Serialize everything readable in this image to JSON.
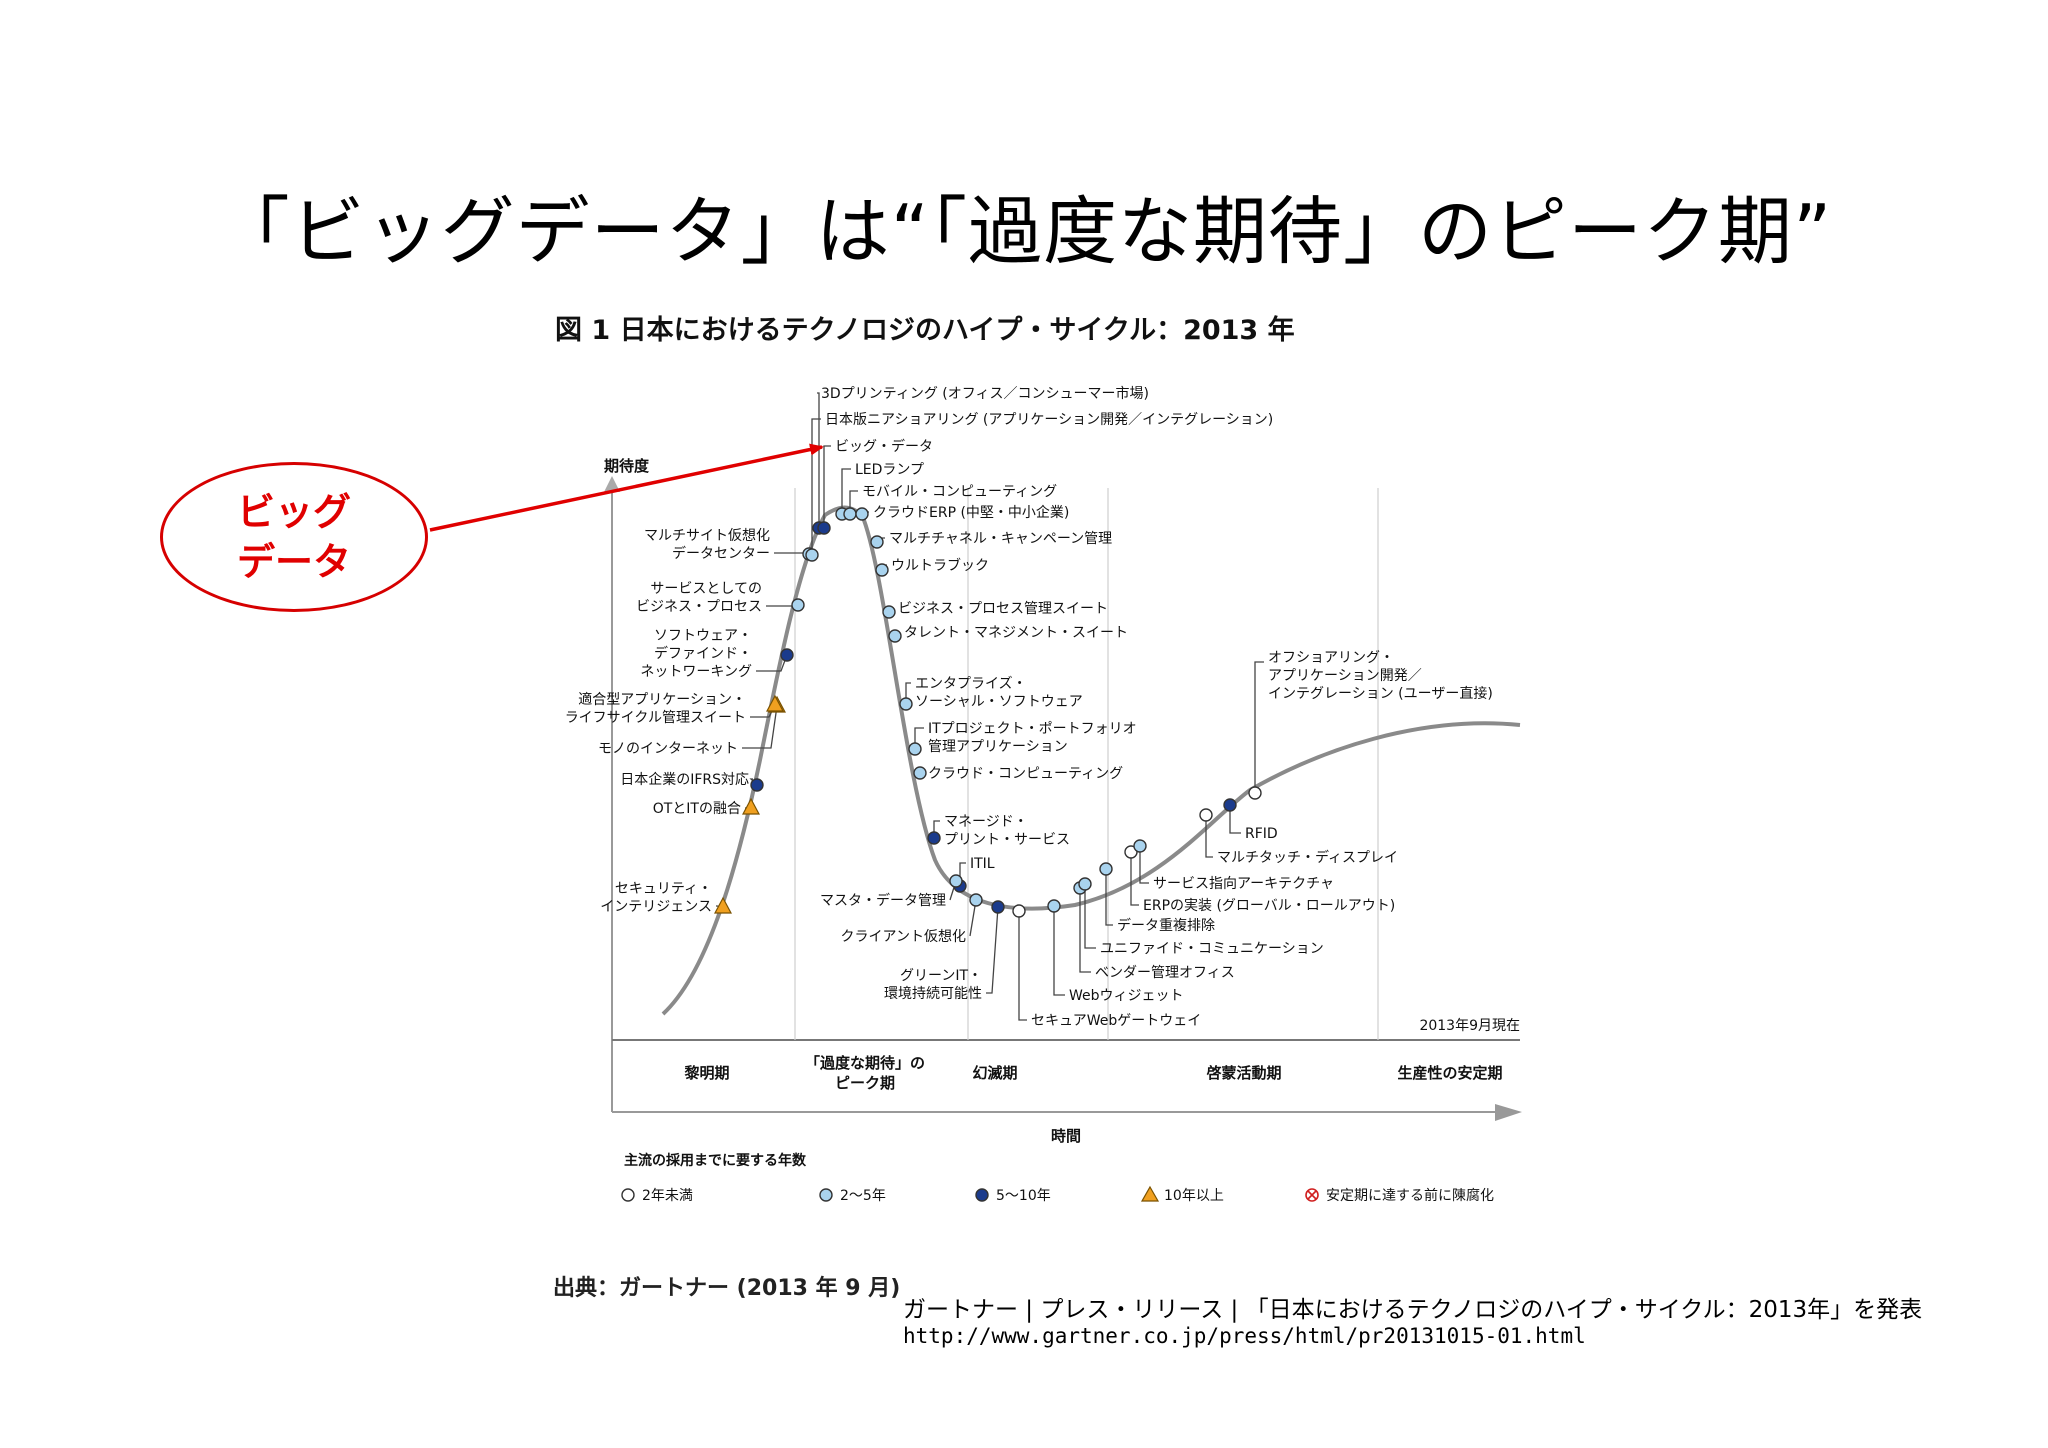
{
  "slide": {
    "title": "「ビッグデータ」は“「過度な期待」のピーク期”",
    "figure_caption": "図 1  日本におけるテクノロジのハイプ・サイクル：2013 年",
    "source_note": "出典：ガートナー (2013 年 9 月)",
    "reference_line1": "ガートナー | プレス・リリース | 「日本におけるテクノロジのハイプ・サイクル：2013年」を発表",
    "reference_line2": "http://www.gartner.co.jp/press/html/pr20131015-01.html",
    "callout": {
      "line1": "ビッグ",
      "line2": "データ",
      "color": "#e00000"
    }
  },
  "chart": {
    "y_axis_label": "期待度",
    "x_axis_label": "時間",
    "as_of": "2013年9月現在",
    "phases": [
      "黎明期",
      "「過度な期待」のピーク期",
      "幻滅期",
      "啓蒙活動期",
      "生産性の安定期"
    ],
    "legend_title": "主流の採用までに要する年数",
    "legend": [
      {
        "label": "2年未満",
        "marker": "white-circle"
      },
      {
        "label": "2～5年",
        "marker": "lightblue-circle"
      },
      {
        "label": "5～10年",
        "marker": "navy-circle"
      },
      {
        "label": "10年以上",
        "marker": "orange-triangle"
      },
      {
        "label": "安定期に達する前に陳腐化",
        "marker": "crossed-circle"
      }
    ],
    "colors": {
      "white": "#ffffff",
      "lightblue": "#a9d3ee",
      "navy": "#1b3b8c",
      "orange": "#f0a020",
      "curve": "#8a8a8a",
      "callout_red": "#e00000"
    },
    "technologies": [
      {
        "name": "セキュリティ・インテリジェンス",
        "label_lines": [
          "セキュリティ・",
          "インテリジェンス"
        ],
        "category": "10年以上"
      },
      {
        "name": "OTとITの融合",
        "label_lines": [
          "OTとITの融合"
        ],
        "category": "10年以上"
      },
      {
        "name": "日本企業のIFRS対応",
        "label_lines": [
          "日本企業のIFRS対応"
        ],
        "category": "5～10年"
      },
      {
        "name": "モノのインターネット",
        "label_lines": [
          "モノのインターネット"
        ],
        "category": "10年以上"
      },
      {
        "name": "適合型アプリケーション・ライフサイクル管理スイート",
        "label_lines": [
          "適合型アプリケーション・",
          "ライフサイクル管理スイート"
        ],
        "category": "10年以上"
      },
      {
        "name": "ソフトウェア・デファインド・ネットワーキング",
        "label_lines": [
          "ソフトウェア・",
          "デファインド・",
          "ネットワーキング"
        ],
        "category": "5～10年"
      },
      {
        "name": "サービスとしてのビジネス・プロセス",
        "label_lines": [
          "サービスとしての",
          "ビジネス・プロセス"
        ],
        "category": "2～5年"
      },
      {
        "name": "マルチサイト仮想化データセンター",
        "label_lines": [
          "マルチサイト仮想化",
          "データセンター"
        ],
        "category": "2～5年"
      },
      {
        "name": "3Dプリンティング (オフィス／コンシューマー市場)",
        "label_lines": [
          "3Dプリンティング (オフィス／コンシューマー市場)"
        ],
        "category": "5～10年"
      },
      {
        "name": "日本版ニアショアリング (アプリケーション開発／インテグレーション)",
        "label_lines": [
          "日本版ニアショアリング (アプリケーション開発／インテグレーション)"
        ],
        "category": "2～5年"
      },
      {
        "name": "ビッグ・データ",
        "label_lines": [
          "ビッグ・データ"
        ],
        "category": "5～10年"
      },
      {
        "name": "LEDランプ",
        "label_lines": [
          "LEDランプ"
        ],
        "category": "2～5年"
      },
      {
        "name": "モバイル・コンピューティング",
        "label_lines": [
          "モバイル・コンピューティング"
        ],
        "category": "2～5年"
      },
      {
        "name": "クラウドERP (中堅・中小企業)",
        "label_lines": [
          "クラウドERP (中堅・中小企業)"
        ],
        "category": "2～5年"
      },
      {
        "name": "マルチチャネル・キャンペーン管理",
        "label_lines": [
          "マルチチャネル・キャンペーン管理"
        ],
        "category": "2～5年"
      },
      {
        "name": "ウルトラブック",
        "label_lines": [
          "ウルトラブック"
        ],
        "category": "2～5年"
      },
      {
        "name": "ビジネス・プロセス管理スイート",
        "label_lines": [
          "ビジネス・プロセス管理スイート"
        ],
        "category": "2～5年"
      },
      {
        "name": "タレント・マネジメント・スイート",
        "label_lines": [
          "タレント・マネジメント・スイート"
        ],
        "category": "2～5年"
      },
      {
        "name": "エンタプライズ・ソーシャル・ソフトウェア",
        "label_lines": [
          "エンタプライズ・",
          "ソーシャル・ソフトウェア"
        ],
        "category": "2～5年"
      },
      {
        "name": "ITプロジェクト・ポートフォリオ管理アプリケーション",
        "label_lines": [
          "ITプロジェクト・ポートフォリオ",
          "管理アプリケーション"
        ],
        "category": "2～5年"
      },
      {
        "name": "クラウド・コンピューティング",
        "label_lines": [
          "クラウド・コンピューティング"
        ],
        "category": "2～5年"
      },
      {
        "name": "マネージド・プリント・サービス",
        "label_lines": [
          "マネージド・",
          "プリント・サービス"
        ],
        "category": "5～10年"
      },
      {
        "name": "ITIL",
        "label_lines": [
          "ITIL"
        ],
        "category": "5～10年"
      },
      {
        "name": "マスタ・データ管理",
        "label_lines": [
          "マスタ・データ管理"
        ],
        "category": "2～5年"
      },
      {
        "name": "クライアント仮想化",
        "label_lines": [
          "クライアント仮想化"
        ],
        "category": "2～5年"
      },
      {
        "name": "グリーンIT・環境持続可能性",
        "label_lines": [
          "グリーンIT・",
          "環境持続可能性"
        ],
        "category": "5～10年"
      },
      {
        "name": "セキュアWebゲートウェイ",
        "label_lines": [
          "セキュアWebゲートウェイ"
        ],
        "category": "2年未満"
      },
      {
        "name": "Webウィジェット",
        "label_lines": [
          "Webウィジェット"
        ],
        "category": "2～5年"
      },
      {
        "name": "ベンダー管理オフィス",
        "label_lines": [
          "ベンダー管理オフィス"
        ],
        "category": "2～5年"
      },
      {
        "name": "ユニファイド・コミュニケーション",
        "label_lines": [
          "ユニファイド・コミュニケーション"
        ],
        "category": "2～5年"
      },
      {
        "name": "データ重複排除",
        "label_lines": [
          "データ重複排除"
        ],
        "category": "2～5年"
      },
      {
        "name": "ERPの実装 (グローバル・ロールアウト)",
        "label_lines": [
          "ERPの実装 (グローバル・ロールアウト)"
        ],
        "category": "2年未満"
      },
      {
        "name": "サービス指向アーキテクチャ",
        "label_lines": [
          "サービス指向アーキテクチャ"
        ],
        "category": "2～5年"
      },
      {
        "name": "マルチタッチ・ディスプレイ",
        "label_lines": [
          "マルチタッチ・ディスプレイ"
        ],
        "category": "2年未満"
      },
      {
        "name": "RFID",
        "label_lines": [
          "RFID"
        ],
        "category": "5～10年"
      },
      {
        "name": "オフショアリング・アプリケーション開発／インテグレーション (ユーザー直接)",
        "label_lines": [
          "オフショアリング・",
          "アプリケーション開発／",
          "インテグレーション (ユーザー直接)"
        ],
        "category": "2年未満"
      }
    ]
  }
}
